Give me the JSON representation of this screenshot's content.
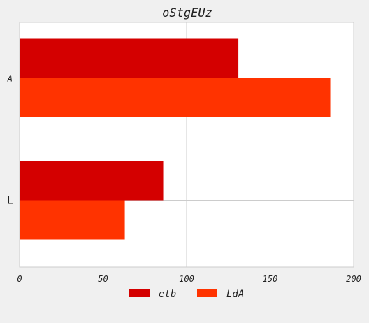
{
  "chart_data": {
    "type": "bar",
    "orientation": "horizontal",
    "title": "oStgEUz",
    "xlabel": "",
    "ylabel": "",
    "categories": [
      "A",
      "L"
    ],
    "series": [
      {
        "name": "etb",
        "values": [
          131,
          86
        ],
        "color": "#d40000"
      },
      {
        "name": "LdA",
        "values": [
          186,
          63
        ],
        "color": "#ff3300"
      }
    ],
    "xlim": [
      0,
      200
    ],
    "xticks": [
      "0",
      "50",
      "100",
      "150",
      "200"
    ],
    "grid": true,
    "legend_position": "bottom-center",
    "plot_background": "#ffffff",
    "figure_background": "#f0f0f0"
  }
}
